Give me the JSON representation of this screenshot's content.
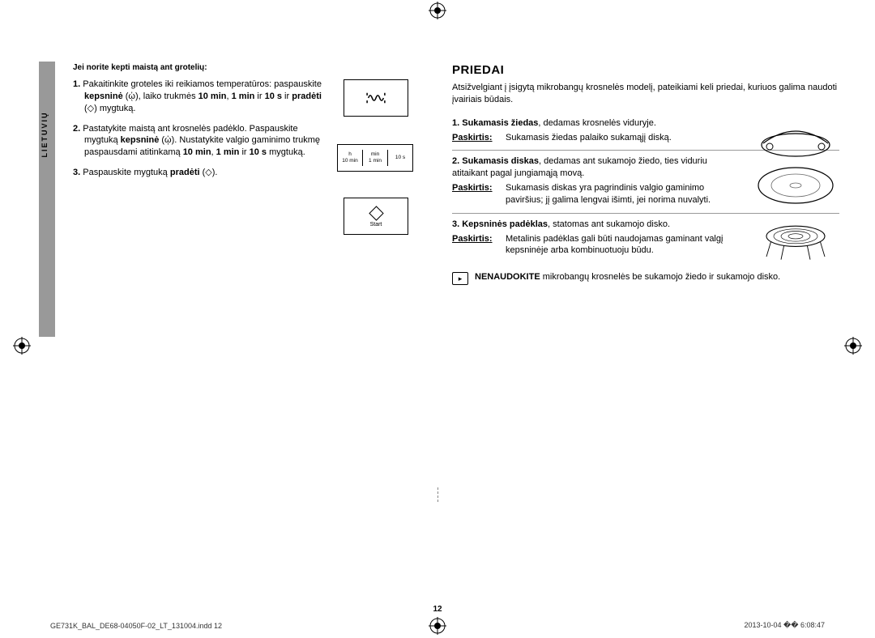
{
  "side_tab_label": "LIETUVIŲ",
  "left": {
    "heading": "Jei norite kepti maistą ant grotelių:",
    "steps": [
      "<b>1.</b> Pakaitinkite groteles iki reikiamos temperatūros: paspauskite <b>kepsninė</b> (ᾠ), laiko trukmės <b>10 min</b>, <b>1 min</b> ir <b>10 s</b> ir <b>pradėti</b> (◇) mygtuką.",
      "<b>2.</b> Pastatykite maistą ant krosnelės padėklo. Paspauskite mygtuką <b>kepsninė</b> (ᾠ). Nustatykite valgio gaminimo trukmę paspausdami atitinkamą <b>10 min</b>, <b>1 min</b> ir <b>10 s</b> mygtuką.",
      "<b>3.</b> Paspauskite mygtuką <b>pradėti</b> (◇)."
    ],
    "timebox": {
      "c1_top": "h",
      "c1_bot": "10 min",
      "c2_top": "min",
      "c2_bot": "1 min",
      "c3": "10 s"
    },
    "startbox_label": "Start"
  },
  "right": {
    "title": "PRIEDAI",
    "intro": "Atsižvelgiant į įsigytą mikrobangų krosnelės modelį, pateikiami keli priedai, kuriuos galima naudoti įvairiais būdais.",
    "accessories": [
      {
        "head": "<b>1. Sukamasis žiedas</b>, dedamas krosnelės viduryje.",
        "purpose_label": "Paskirtis:",
        "purpose": "Sukamasis žiedas palaiko sukamąjį diską."
      },
      {
        "head": "<b>2. Sukamasis diskas</b>, dedamas ant sukamojo žiedo, ties viduriu atitaikant pagal jungiamąją movą.",
        "purpose_label": "Paskirtis:",
        "purpose": "Sukamasis diskas yra pagrindinis valgio gaminimo paviršius; jį galima lengvai išimti, jei norima nuvalyti."
      },
      {
        "head": "<b>3. Kepsninės padėklas</b>, statomas ant sukamojo disko.",
        "purpose_label": "Paskirtis:",
        "purpose": "Metalinis padėklas gali būti naudojamas gaminant valgį kepsninėje arba kombinuotuoju būdu."
      }
    ],
    "warning": "<b>NENAUDOKITE</b> mikrobangų krosnelės be sukamojo žiedo ir sukamojo disko."
  },
  "page_number": "12",
  "footer_left": "GE731K_BAL_DE68-04050F-02_LT_131004.indd   12",
  "footer_right": "2013-10-04   �� 6:08:47"
}
